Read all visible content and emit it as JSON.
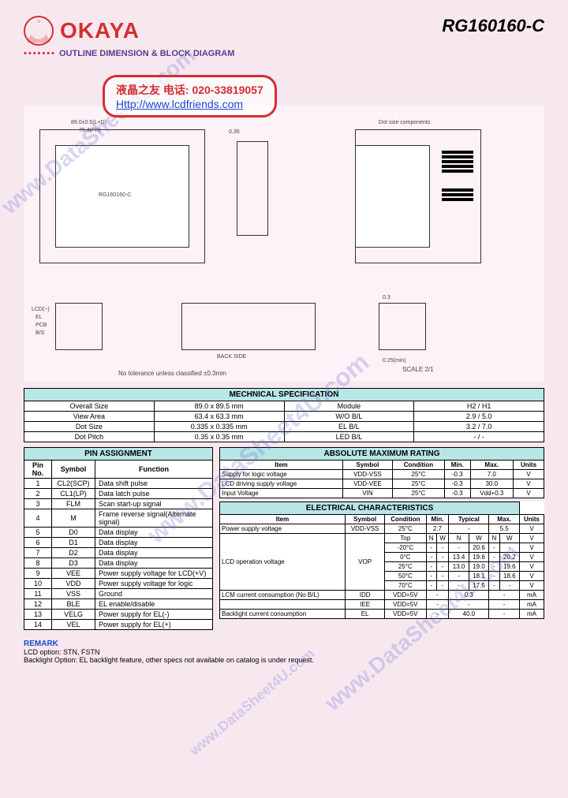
{
  "header": {
    "logo_text": "OKAYA",
    "part_number": "RG160160-C",
    "subtitle": "OUTLINE DIMENSION & BLOCK DIAGRAM"
  },
  "stamp": {
    "line1": "液晶之友 电话: 020-33819057",
    "line2": "Http://www.lcdfriends.com"
  },
  "watermark": "www.DataSheet4U.com",
  "diagram": {
    "label1": "89.0±0.5(L×D)",
    "label2": "75.4(FR)",
    "label3": "63.4(V×A)",
    "label4": "RG160160-C",
    "label5": "0.35",
    "label6": "0.335(dot)",
    "label7": "BACK SIDE",
    "tolerance": "No tolerance unless classified ±0.3mm",
    "scale": "SCALE 2/1",
    "dots1": "Dot size components",
    "dots2": "89.0±0.5(L×D)"
  },
  "mech": {
    "title": "MECHNICAL SPECIFICATION",
    "rows": [
      [
        "Overall Size",
        "89.0 x 89.5 mm",
        "Module",
        "H2 / H1"
      ],
      [
        "View Area",
        "63.4 x 63.3 mm",
        "W/O B/L",
        "2.9 / 5.0"
      ],
      [
        "Dot Size",
        "0.335 x 0.335 mm",
        "EL B/L",
        "3.2 / 7.0"
      ],
      [
        "Dot Pitch",
        "0.35 x 0.35 mm",
        "LED B/L",
        "- / -"
      ]
    ]
  },
  "pin": {
    "title": "PIN ASSIGNMENT",
    "headers": [
      "Pin No.",
      "Symbol",
      "Function"
    ],
    "rows": [
      [
        "1",
        "CL2(SCP)",
        "Data shift pulse"
      ],
      [
        "2",
        "CL1(LP)",
        "Data latch pulse"
      ],
      [
        "3",
        "FLM",
        "Scan start-up signal"
      ],
      [
        "4",
        "M",
        "Frame reverse signal(Alternate signal)"
      ],
      [
        "5",
        "D0",
        "Data display"
      ],
      [
        "6",
        "D1",
        "Data display"
      ],
      [
        "7",
        "D2",
        "Data display"
      ],
      [
        "8",
        "D3",
        "Data display"
      ],
      [
        "9",
        "VEE",
        "Power supply voltage for LCD(+V)"
      ],
      [
        "10",
        "VDD",
        "Power supply voltage for logic"
      ],
      [
        "11",
        "VSS",
        "Ground"
      ],
      [
        "12",
        "BLE",
        "EL enable/disable"
      ],
      [
        "13",
        "VELG",
        "Power supply for EL(-)"
      ],
      [
        "14",
        "VEL",
        "Power supply for EL(+)"
      ]
    ]
  },
  "abs": {
    "title": "ABSOLUTE MAXIMUM RATING",
    "headers": [
      "Item",
      "Symbol",
      "Condition",
      "Min.",
      "Max.",
      "Units"
    ],
    "rows": [
      [
        "Supply for logic voltage",
        "VDD-VSS",
        "25°C",
        "-0.3",
        "7.0",
        "V"
      ],
      [
        "LCD driving supply voltage",
        "VDD-VEE",
        "25°C",
        "-0.3",
        "30.0",
        "V"
      ],
      [
        "Input Voltage",
        "VIN",
        "25°C",
        "-0.3",
        "Vdd+0.3",
        "V"
      ]
    ]
  },
  "elec": {
    "title": "ELECTRICAL CHARACTERISTICS",
    "headers": [
      "Item",
      "Symbol",
      "Condition",
      "Min.",
      "Typical",
      "Max.",
      "Units"
    ],
    "row_psv": [
      "Power supply voltage",
      "VDD-VSS",
      "25°C",
      "2.7",
      "-",
      "5.5",
      "V"
    ],
    "lcd_op_label": "LCD operation voltage",
    "lcd_op_symbol": "VOP",
    "lcd_op_subhead": [
      "Top",
      "N",
      "W",
      "N",
      "W",
      "N",
      "W",
      "V"
    ],
    "lcd_op_rows": [
      [
        "-20°C",
        "-",
        "-",
        "-",
        "20.6",
        "-",
        "-",
        "V"
      ],
      [
        "0°C",
        "-",
        "13.4",
        "19.6",
        "-",
        "20.2",
        "V"
      ],
      [
        "25°C",
        "-",
        "13.0",
        "19.0",
        "-",
        "19.6",
        "V"
      ],
      [
        "50°C",
        "-",
        "-",
        "18.1",
        "-",
        "18.6",
        "V"
      ],
      [
        "70°C",
        "-",
        "-",
        "17.5",
        "-",
        "-",
        "V"
      ]
    ],
    "row_lcm": [
      "LCM current consumption (No B/L)",
      "IDD",
      "VDD=5V",
      "-",
      "0.3",
      "-",
      "mA"
    ],
    "row_iee": [
      "",
      "IEE",
      "VDD=5V",
      "-",
      "-",
      "-",
      "mA"
    ],
    "row_bl": [
      "Backlight current consumption",
      "EL",
      "VDD=5V",
      "-",
      "40.0",
      "-",
      "mA"
    ]
  },
  "remark": {
    "title": "REMARK",
    "line1": "LCD option: STN, FSTN",
    "line2": "Backlight Option: EL backlight feature, other specs not available on catalog is under request."
  },
  "colors": {
    "page_bg": "#f7e8f0",
    "accent_red": "#d32f2f",
    "accent_purple": "#5a3b8a",
    "header_bg": "#b8e6e6",
    "link_blue": "#1a4bd1"
  }
}
